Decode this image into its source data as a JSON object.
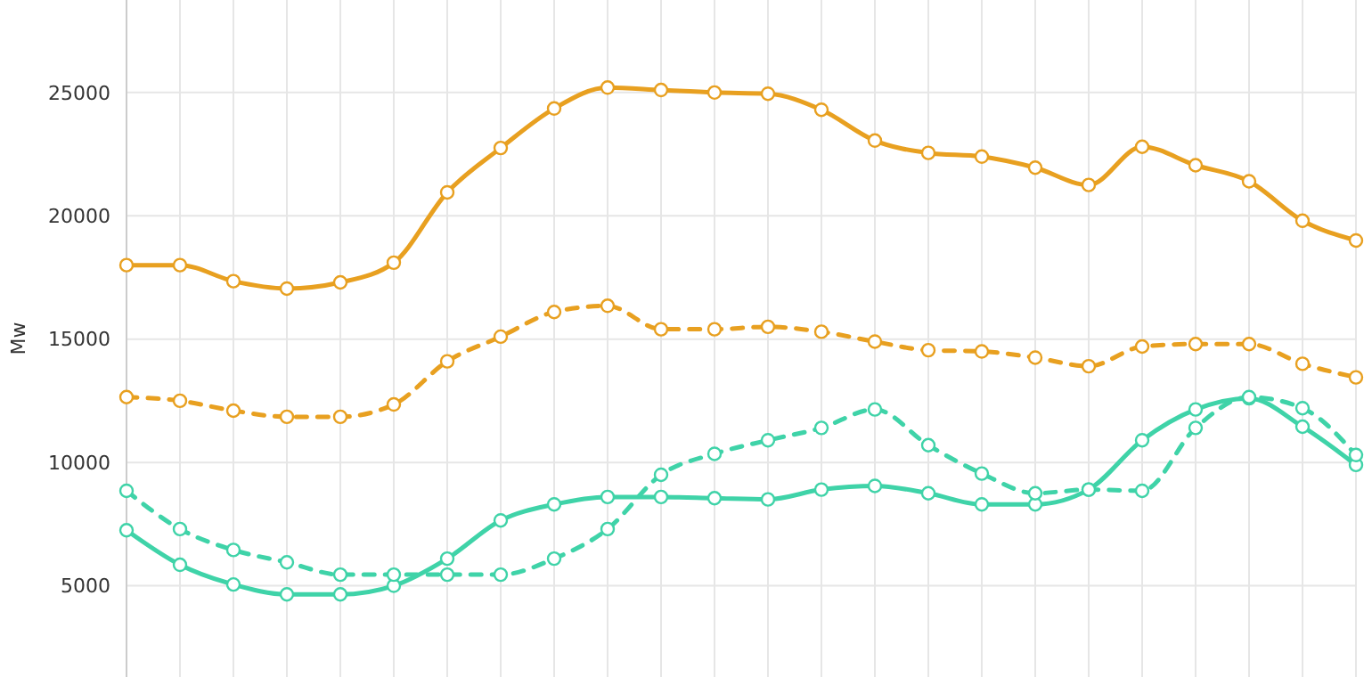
{
  "chart_data": {
    "type": "line",
    "ylabel": "Mw",
    "categories": [
      null,
      null,
      null,
      null,
      null,
      null,
      null,
      null,
      null,
      null,
      null,
      null,
      null,
      null,
      null,
      null,
      null,
      null,
      null,
      null,
      null,
      null,
      null,
      null
    ],
    "series": [
      {
        "color": "#e8a020",
        "line_style": "solid",
        "values": [
          18000,
          18000,
          17350,
          17050,
          17300,
          18100,
          20950,
          22750,
          24350,
          25200,
          25100,
          25000,
          24950,
          24300,
          23050,
          22550,
          22400,
          21950,
          21250,
          22800,
          22050,
          21400,
          19800,
          19000
        ]
      },
      {
        "color": "#e8a020",
        "line_style": "dashed",
        "values": [
          12650,
          12500,
          12100,
          11850,
          11850,
          12350,
          14100,
          15100,
          16100,
          16350,
          15400,
          15400,
          15500,
          15300,
          14900,
          14550,
          14500,
          14250,
          13900,
          14700,
          14800,
          14800,
          14000,
          13450
        ]
      },
      {
        "color": "#3fd3a8",
        "line_style": "solid",
        "values": [
          7250,
          5850,
          5050,
          4650,
          4650,
          5000,
          6100,
          7650,
          8300,
          8600,
          8600,
          8550,
          8500,
          8900,
          9050,
          8750,
          8300,
          8300,
          8900,
          10900,
          12150,
          12600,
          11450,
          9900
        ]
      },
      {
        "color": "#3fd3a8",
        "line_style": "dashed",
        "values": [
          8850,
          7300,
          6450,
          5950,
          5450,
          5450,
          5450,
          5450,
          6100,
          7300,
          9500,
          10350,
          10900,
          11400,
          12150,
          10700,
          9550,
          8750,
          8900,
          8850,
          11400,
          12650,
          12200,
          10300
        ]
      }
    ],
    "ylim": [
      1300,
      28750
    ],
    "yticks": [
      5000,
      10000,
      15000,
      20000,
      25000
    ],
    "grid": true,
    "marker": "circle",
    "tick_labels": "y"
  }
}
